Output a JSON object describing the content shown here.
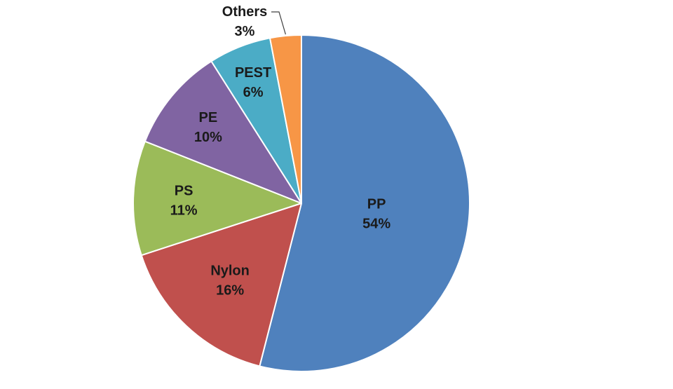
{
  "chart_data": {
    "type": "pie",
    "start_angle_deg": 0,
    "direction": "clockwise",
    "legend": "none",
    "slices": [
      {
        "label": "PP",
        "value": 54,
        "value_label": "54%",
        "color": "#4F81BD"
      },
      {
        "label": "Nylon",
        "value": 16,
        "value_label": "16%",
        "color": "#C0504D"
      },
      {
        "label": "PS",
        "value": 11,
        "value_label": "11%",
        "color": "#9BBB59"
      },
      {
        "label": "PE",
        "value": 10,
        "value_label": "10%",
        "color": "#8064A2"
      },
      {
        "label": "PEST",
        "value": 6,
        "value_label": "6%",
        "color": "#4BACC6"
      },
      {
        "label": "Others",
        "value": 3,
        "value_label": "3%",
        "color": "#F79646"
      }
    ]
  }
}
